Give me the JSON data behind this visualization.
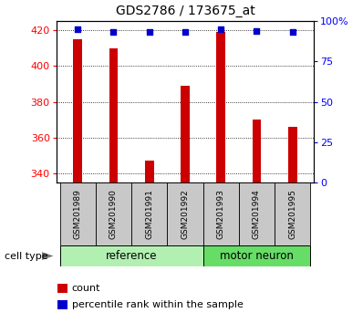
{
  "title": "GDS2786 / 173675_at",
  "categories": [
    "GSM201989",
    "GSM201990",
    "GSM201991",
    "GSM201992",
    "GSM201993",
    "GSM201994",
    "GSM201995"
  ],
  "counts": [
    415,
    410,
    347,
    389,
    419,
    370,
    366
  ],
  "percentiles": [
    95,
    93,
    93,
    93,
    95,
    94,
    93
  ],
  "bar_color": "#CC0000",
  "dot_color": "#0000CC",
  "ylim_left": [
    335,
    425
  ],
  "ylim_right": [
    0,
    100
  ],
  "yticks_left": [
    340,
    360,
    380,
    400,
    420
  ],
  "yticks_right": [
    0,
    25,
    50,
    75,
    100
  ],
  "ytick_labels_right": [
    "0",
    "25",
    "50",
    "75",
    "100%"
  ],
  "legend_count_label": "count",
  "legend_percentile_label": "percentile rank within the sample",
  "ref_group_color": "#b2f0b2",
  "motor_group_color": "#66dd66",
  "tick_area_color": "#c8c8c8",
  "bar_width": 0.25
}
